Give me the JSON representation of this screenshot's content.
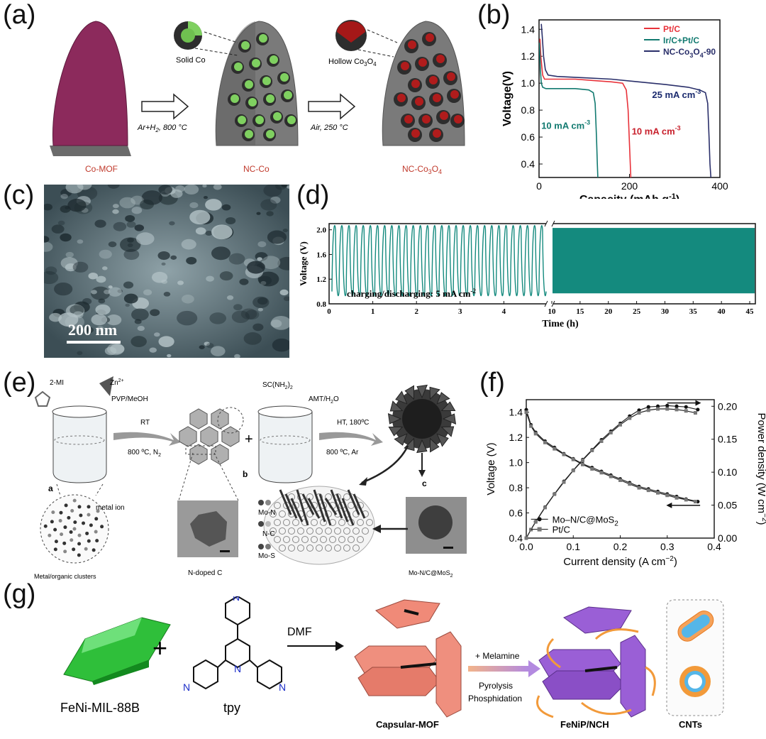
{
  "figure": {
    "panels": {
      "a": {
        "label": "(a)",
        "items": {
          "mof": "Co-MOF",
          "step1": "Ar+H",
          "step1_sub": "2",
          "step1_tail": ", 800 °C",
          "inset1": "Solid Co",
          "mid": "NC-Co",
          "step2": "Air, 250 °C",
          "inset2": "Hollow Co",
          "inset2_sub1": "3",
          "inset2_mid": "O",
          "inset2_sub2": "4",
          "final": "NC-Co",
          "final_sub1": "3",
          "final_mid": "O",
          "final_sub2": "4"
        }
      },
      "b": {
        "label": "(b)"
      },
      "c": {
        "label": "(c)",
        "scale_bar": "200 nm"
      },
      "d": {
        "label": "(d)",
        "annotation": "charging/discharging: 5 mA cm",
        "annotation_sup": "-2"
      },
      "e": {
        "label": "(e)",
        "texts": {
          "mi": "2-MI",
          "zn": "Zn",
          "zn_sup": "2+",
          "pvp": "PVP/MeOH",
          "rt": "RT",
          "n2": "800 ºC, N",
          "n2_sub": "2",
          "thiourea": "SC(NH",
          "thiourea_sub": "2",
          "thiourea_tail": ")",
          "thiourea_sub2": "2",
          "amt": "AMT/H",
          "amt_sub": "2",
          "amt_tail": "O",
          "ht": "HT, 180ºC",
          "ar": "800 ºC, Ar",
          "a": "a",
          "b": "b",
          "c": "c",
          "metal_ion": "metal ion",
          "clusters": "Metal/organic clusters",
          "ndoped": "N-doped C",
          "mo_n": "Mo-N",
          "n_c": "N-C",
          "mo_s": "Mo-S",
          "product": "Mo-N/C@MoS",
          "product_sub": "2"
        }
      },
      "f": {
        "label": "(f)"
      },
      "g": {
        "label": "(g)",
        "texts": {
          "mil": "FeNi-MIL-88B",
          "plus": "+",
          "tpy": "tpy",
          "n": "N",
          "dmf": "DMF",
          "capsular": "Capsular-MOF",
          "melamine": "+ Melamine",
          "pyrolysis": "Pyrolysis",
          "phosphidation": "Phosphidation",
          "fenip": "FeNiP/NCH",
          "cnts": "CNTs"
        }
      }
    }
  },
  "chart_data": [
    {
      "panel": "b",
      "type": "line",
      "xlabel": "Capacity (mAh g",
      "xlabel_sup": "-1",
      "xlabel_tail": ")",
      "ylabel": "Voltage(V)",
      "xlim": [
        0,
        400
      ],
      "ylim": [
        0.3,
        1.47
      ],
      "xticks": [
        0,
        200,
        400
      ],
      "yticks": [
        0.4,
        0.6,
        0.8,
        1.0,
        1.2,
        1.4
      ],
      "legend": {
        "position": "top-right"
      },
      "annotations": [
        {
          "text": "25 mA cm",
          "sup": "-3",
          "color": "#1a2a6e",
          "x": 250,
          "y": 0.89
        },
        {
          "text": "10 mA cm",
          "sup": "-3",
          "color": "#127a70",
          "x": 5,
          "y": 0.66
        },
        {
          "text": "10 mA cm",
          "sup": "-3",
          "color": "#c8202c",
          "x": 205,
          "y": 0.62
        }
      ],
      "series": [
        {
          "name": "Pt/C",
          "color": "#e8323a",
          "x": [
            2,
            4,
            8,
            12,
            20,
            40,
            80,
            120,
            160,
            185,
            193,
            197,
            200,
            203
          ],
          "y": [
            1.33,
            1.2,
            1.06,
            1.03,
            1.03,
            1.03,
            1.03,
            1.02,
            1.01,
            1.0,
            0.95,
            0.8,
            0.55,
            0.3
          ]
        },
        {
          "name": "Ir/C+Pt/C",
          "color": "#127a70",
          "x": [
            1,
            3,
            5,
            8,
            15,
            40,
            80,
            110,
            120,
            124,
            127,
            129,
            130
          ],
          "y": [
            1.3,
            1.1,
            1.0,
            0.97,
            0.96,
            0.96,
            0.96,
            0.95,
            0.93,
            0.85,
            0.6,
            0.4,
            0.3
          ]
        },
        {
          "name": "NC-Co",
          "name_sub1": "3",
          "name_mid": "O",
          "name_sub2": "4",
          "name_tail": "-90",
          "color": "#2a2f6a",
          "x": [
            5,
            7,
            10,
            14,
            20,
            40,
            100,
            160,
            220,
            280,
            330,
            355,
            368,
            373,
            376,
            378,
            380
          ],
          "y": [
            1.44,
            1.35,
            1.2,
            1.1,
            1.06,
            1.05,
            1.04,
            1.03,
            1.01,
            0.99,
            0.97,
            0.95,
            0.93,
            0.85,
            0.6,
            0.4,
            0.3
          ]
        }
      ]
    },
    {
      "panel": "d",
      "type": "line",
      "xlabel": "Time (h)",
      "ylabel": "Voltage (V)",
      "ylim": [
        0.8,
        2.1
      ],
      "yticks": [
        0.8,
        1.2,
        1.6,
        2.0
      ],
      "xticks_left": [
        0,
        1,
        2,
        3,
        4
      ],
      "xticks_right": [
        10,
        15,
        20,
        25,
        30,
        35,
        40,
        45
      ],
      "xlim_left": [
        0,
        5
      ],
      "xlim_right": [
        10,
        46
      ],
      "series": [
        {
          "name": "charge/discharge",
          "color": "#148a7e",
          "cycles_left": 30,
          "upper": 2.0,
          "lower": 1.0
        }
      ]
    },
    {
      "panel": "f",
      "type": "line",
      "xlabel": "Current density (A cm",
      "xlabel_sup": "−2",
      "xlabel_tail": ")",
      "ylabel": "Voltage (V)",
      "y2label": "Power density (W cm",
      "y2label_sup": "−2",
      "y2label_tail": ")",
      "xlim": [
        0,
        0.4
      ],
      "ylim": [
        0.4,
        1.5
      ],
      "y2lim": [
        0,
        0.21
      ],
      "xticks": [
        0.0,
        0.1,
        0.2,
        0.3,
        0.4
      ],
      "yticks": [
        0.4,
        0.6,
        0.8,
        1.0,
        1.2,
        1.4
      ],
      "y2ticks": [
        0.0,
        0.05,
        0.1,
        0.15,
        0.2
      ],
      "legend": {
        "position": "bottom-right"
      },
      "series": [
        {
          "name": "Mo–N/C@MoS",
          "name_sub": "2",
          "marker": "circle",
          "axis": "left",
          "x": [
            0.0,
            0.01,
            0.02,
            0.04,
            0.06,
            0.08,
            0.1,
            0.12,
            0.14,
            0.16,
            0.18,
            0.2,
            0.22,
            0.24,
            0.26,
            0.28,
            0.3,
            0.32,
            0.34,
            0.365
          ],
          "y": [
            1.42,
            1.3,
            1.24,
            1.17,
            1.12,
            1.07,
            1.03,
            0.99,
            0.96,
            0.93,
            0.9,
            0.87,
            0.84,
            0.81,
            0.79,
            0.77,
            0.75,
            0.73,
            0.71,
            0.69
          ]
        },
        {
          "name": "Pt/C",
          "marker": "square",
          "axis": "left",
          "x": [
            0.0,
            0.01,
            0.02,
            0.04,
            0.06,
            0.08,
            0.1,
            0.12,
            0.14,
            0.16,
            0.18,
            0.2,
            0.22,
            0.24,
            0.26,
            0.28,
            0.3,
            0.32,
            0.34,
            0.36
          ],
          "y": [
            1.4,
            1.29,
            1.23,
            1.16,
            1.11,
            1.065,
            1.025,
            0.985,
            0.95,
            0.92,
            0.89,
            0.86,
            0.83,
            0.8,
            0.78,
            0.76,
            0.74,
            0.72,
            0.705,
            0.69
          ]
        },
        {
          "name": "Mo–N/C@MoS power",
          "marker": "circle",
          "axis": "right",
          "x": [
            0.0,
            0.01,
            0.02,
            0.04,
            0.06,
            0.08,
            0.1,
            0.12,
            0.14,
            0.16,
            0.18,
            0.2,
            0.22,
            0.24,
            0.26,
            0.28,
            0.3,
            0.32,
            0.34,
            0.365
          ],
          "y": [
            0.0,
            0.013,
            0.025,
            0.047,
            0.067,
            0.086,
            0.103,
            0.119,
            0.134,
            0.149,
            0.162,
            0.174,
            0.185,
            0.194,
            0.199,
            0.2,
            0.201,
            0.2,
            0.199,
            0.195
          ]
        },
        {
          "name": "Pt/C power",
          "marker": "square",
          "axis": "right",
          "x": [
            0.0,
            0.01,
            0.02,
            0.04,
            0.06,
            0.08,
            0.1,
            0.12,
            0.14,
            0.16,
            0.18,
            0.2,
            0.22,
            0.24,
            0.26,
            0.28,
            0.3,
            0.32,
            0.34,
            0.36
          ],
          "y": [
            0.0,
            0.0129,
            0.0246,
            0.0464,
            0.0666,
            0.085,
            0.1025,
            0.118,
            0.133,
            0.147,
            0.16,
            0.172,
            0.182,
            0.19,
            0.194,
            0.196,
            0.196,
            0.195,
            0.193,
            0.19
          ]
        }
      ]
    }
  ]
}
